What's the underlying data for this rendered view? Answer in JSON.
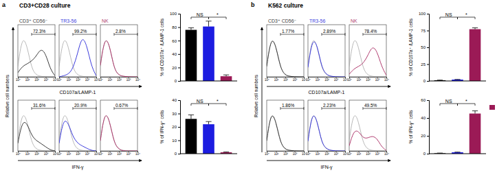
{
  "figure": {
    "panels": [
      {
        "label": "a",
        "title": "CD3+CD28 culture",
        "ylabel": "Relative cell numbers",
        "row_labels": [
          "CD107a/LAMP-1",
          "IFN-γ"
        ]
      },
      {
        "label": "b",
        "title": "K562 culture",
        "ylabel": "Relative cell numbers",
        "row_labels": [
          "CD107a/LAMP-1",
          "IFN-γ"
        ]
      }
    ]
  },
  "chart_data": [
    {
      "type": "histogram_overlay",
      "title": "CD3⁺ CD56⁻",
      "log": "x",
      "xlim": [
        1,
        10000
      ],
      "xticks": [
        {
          "value": 1,
          "label": "10⁰"
        },
        {
          "value": 10,
          "label": "10¹"
        },
        {
          "value": 100,
          "label": "10²"
        },
        {
          "value": 1000,
          "label": "10³"
        },
        {
          "value": 10000,
          "label": "10⁴"
        }
      ],
      "ylim": [
        0,
        100
      ],
      "tick_labels": "x",
      "x": [
        1,
        3,
        10,
        30,
        100,
        300,
        1000,
        3000,
        10000
      ],
      "series": [
        {
          "color": "#a6a6a6",
          "values": [
            20,
            80,
            60,
            15,
            3,
            1,
            0,
            0,
            0
          ]
        },
        {
          "color": "#3a3a3a",
          "values": [
            8,
            20,
            25,
            30,
            40,
            55,
            45,
            15,
            2
          ]
        }
      ],
      "gate": [
        30,
        10000
      ],
      "gate_label": "72.3%"
    },
    {
      "type": "histogram_overlay",
      "title": "TR3-56",
      "log": "x",
      "xlim": [
        1,
        10000
      ],
      "xticks": [
        {
          "value": 1,
          "label": "10⁰"
        },
        {
          "value": 10,
          "label": "10¹"
        },
        {
          "value": 100,
          "label": "10²"
        },
        {
          "value": 1000,
          "label": "10³"
        },
        {
          "value": 10000,
          "label": "10⁴"
        }
      ],
      "ylim": [
        0,
        100
      ],
      "tick_labels": "x",
      "x": [
        1,
        3,
        10,
        30,
        100,
        300,
        1000,
        3000,
        10000
      ],
      "series": [
        {
          "color": "#a6a6a6",
          "values": [
            20,
            80,
            60,
            15,
            3,
            1,
            0,
            0,
            0
          ]
        },
        {
          "color": "#3b3bdc",
          "values": [
            0,
            2,
            5,
            15,
            45,
            80,
            60,
            20,
            2
          ]
        }
      ],
      "gate": [
        30,
        10000
      ],
      "gate_label": "99.2%"
    },
    {
      "type": "histogram_overlay",
      "title": "NK",
      "log": "x",
      "xlim": [
        1,
        10000
      ],
      "xticks": [
        {
          "value": 1,
          "label": "10⁰"
        },
        {
          "value": 10,
          "label": "10¹"
        },
        {
          "value": 100,
          "label": "10²"
        },
        {
          "value": 1000,
          "label": "10³"
        },
        {
          "value": 10000,
          "label": "10⁴"
        }
      ],
      "ylim": [
        0,
        100
      ],
      "tick_labels": "x",
      "x": [
        1,
        3,
        10,
        30,
        100,
        300,
        1000,
        3000,
        10000
      ],
      "series": [
        {
          "color": "#a6a6a6",
          "values": [
            20,
            80,
            60,
            15,
            3,
            1,
            0,
            0,
            0
          ]
        },
        {
          "color": "#b03a6e",
          "values": [
            22,
            78,
            62,
            14,
            3,
            1,
            0,
            0,
            0
          ]
        }
      ],
      "gate": [
        30,
        10000
      ],
      "gate_label": "2.8%"
    },
    {
      "type": "histogram_overlay",
      "log": "x",
      "xlim": [
        1,
        10000
      ],
      "xticks": [
        {
          "value": 1,
          "label": "10⁰"
        },
        {
          "value": 10,
          "label": "10¹"
        },
        {
          "value": 100,
          "label": "10²"
        },
        {
          "value": 1000,
          "label": "10³"
        },
        {
          "value": 10000,
          "label": "10⁴"
        }
      ],
      "ylim": [
        0,
        100
      ],
      "tick_labels": "x",
      "x": [
        1,
        3,
        10,
        30,
        100,
        300,
        1000,
        3000,
        10000
      ],
      "series": [
        {
          "color": "#a6a6a6",
          "values": [
            20,
            80,
            60,
            15,
            3,
            1,
            0,
            0,
            0
          ]
        },
        {
          "color": "#3a3a3a",
          "values": [
            15,
            60,
            55,
            30,
            20,
            15,
            8,
            2,
            0
          ]
        }
      ],
      "gate": [
        30,
        10000
      ],
      "gate_label": "31.6%"
    },
    {
      "type": "histogram_overlay",
      "log": "x",
      "xlim": [
        1,
        10000
      ],
      "xticks": [
        {
          "value": 1,
          "label": "10⁰"
        },
        {
          "value": 10,
          "label": "10¹"
        },
        {
          "value": 100,
          "label": "10²"
        },
        {
          "value": 1000,
          "label": "10³"
        },
        {
          "value": 10000,
          "label": "10⁴"
        }
      ],
      "ylim": [
        0,
        100
      ],
      "tick_labels": "x",
      "x": [
        1,
        3,
        10,
        30,
        100,
        300,
        1000,
        3000,
        10000
      ],
      "series": [
        {
          "color": "#a6a6a6",
          "values": [
            20,
            80,
            60,
            15,
            3,
            1,
            0,
            0,
            0
          ]
        },
        {
          "color": "#3b3bdc",
          "values": [
            15,
            65,
            55,
            28,
            15,
            10,
            5,
            1,
            0
          ]
        }
      ],
      "gate": [
        30,
        10000
      ],
      "gate_label": "20.9%"
    },
    {
      "type": "histogram_overlay",
      "log": "x",
      "xlim": [
        1,
        10000
      ],
      "xticks": [
        {
          "value": 1,
          "label": "10⁰"
        },
        {
          "value": 10,
          "label": "10¹"
        },
        {
          "value": 100,
          "label": "10²"
        },
        {
          "value": 1000,
          "label": "10³"
        },
        {
          "value": 10000,
          "label": "10⁴"
        }
      ],
      "ylim": [
        0,
        100
      ],
      "tick_labels": "x",
      "x": [
        1,
        3,
        10,
        30,
        100,
        300,
        1000,
        3000,
        10000
      ],
      "series": [
        {
          "color": "#a6a6a6",
          "values": [
            20,
            80,
            60,
            15,
            3,
            1,
            0,
            0,
            0
          ]
        },
        {
          "color": "#b03a6e",
          "values": [
            20,
            80,
            60,
            15,
            3,
            0,
            0,
            0,
            0
          ]
        }
      ],
      "gate": [
        30,
        10000
      ],
      "gate_label": "0.67%"
    },
    {
      "type": "bar",
      "ylabel": "% of CD107a⁺ /LAMP-1 cells",
      "categories": [
        null,
        null,
        null
      ],
      "values": [
        76,
        81,
        7
      ],
      "errors": [
        3,
        8,
        2
      ],
      "colors": [
        "#000000",
        "#1c1ce0",
        "#9b1a56"
      ],
      "ylim": [
        0,
        100
      ],
      "yticks": [
        0,
        20,
        40,
        60,
        80,
        100
      ],
      "brackets": [
        {
          "text": "NS",
          "between": [
            0,
            1
          ]
        },
        {
          "text": "*",
          "between": [
            1,
            2
          ]
        }
      ]
    },
    {
      "type": "bar",
      "ylabel": "% of IFN-γ⁺ cells",
      "categories": [
        null,
        null,
        null
      ],
      "values": [
        26,
        22,
        1
      ],
      "errors": [
        3,
        2,
        0.3
      ],
      "colors": [
        "#000000",
        "#1c1ce0",
        "#9b1a56"
      ],
      "ylim": [
        0,
        40
      ],
      "yticks": [
        0,
        10,
        20,
        30,
        40
      ],
      "brackets": [
        {
          "text": "NS",
          "between": [
            0,
            1
          ]
        },
        {
          "text": "*",
          "between": [
            1,
            2
          ]
        }
      ]
    },
    {
      "type": "histogram_overlay",
      "title": "CD3⁺ CD56⁻",
      "log": "x",
      "xlim": [
        1,
        10000
      ],
      "xticks": [
        {
          "value": 1,
          "label": "10⁰"
        },
        {
          "value": 10,
          "label": "10¹"
        },
        {
          "value": 100,
          "label": "10²"
        },
        {
          "value": 1000,
          "label": "10³"
        },
        {
          "value": 10000,
          "label": "10⁴"
        }
      ],
      "ylim": [
        0,
        100
      ],
      "tick_labels": "x",
      "x": [
        1,
        3,
        10,
        30,
        100,
        300,
        1000,
        3000,
        10000
      ],
      "series": [
        {
          "color": "#a6a6a6",
          "values": [
            20,
            80,
            60,
            15,
            3,
            1,
            0,
            0,
            0
          ]
        },
        {
          "color": "#3a3a3a",
          "values": [
            20,
            78,
            60,
            16,
            3,
            1,
            0,
            0,
            0
          ]
        }
      ],
      "gate": [
        30,
        10000
      ],
      "gate_label": "1.77%"
    },
    {
      "type": "histogram_overlay",
      "title": "TR3-56",
      "log": "x",
      "xlim": [
        1,
        10000
      ],
      "xticks": [
        {
          "value": 1,
          "label": "10⁰"
        },
        {
          "value": 10,
          "label": "10¹"
        },
        {
          "value": 100,
          "label": "10²"
        },
        {
          "value": 1000,
          "label": "10³"
        },
        {
          "value": 10000,
          "label": "10⁴"
        }
      ],
      "ylim": [
        0,
        100
      ],
      "tick_labels": "x",
      "x": [
        1,
        3,
        10,
        30,
        100,
        300,
        1000,
        3000,
        10000
      ],
      "series": [
        {
          "color": "#a6a6a6",
          "values": [
            20,
            80,
            60,
            15,
            3,
            1,
            0,
            0,
            0
          ]
        },
        {
          "color": "#3b3bdc",
          "values": [
            18,
            75,
            62,
            17,
            4,
            1,
            0,
            0,
            0
          ]
        }
      ],
      "gate": [
        30,
        10000
      ],
      "gate_label": "2.89%"
    },
    {
      "type": "histogram_overlay",
      "title": "NK",
      "log": "x",
      "xlim": [
        1,
        10000
      ],
      "xticks": [
        {
          "value": 1,
          "label": "10⁰"
        },
        {
          "value": 10,
          "label": "10¹"
        },
        {
          "value": 100,
          "label": "10²"
        },
        {
          "value": 1000,
          "label": "10³"
        },
        {
          "value": 10000,
          "label": "10⁴"
        }
      ],
      "ylim": [
        0,
        100
      ],
      "tick_labels": "x",
      "x": [
        1,
        3,
        10,
        30,
        100,
        300,
        1000,
        3000,
        10000
      ],
      "series": [
        {
          "color": "#a6a6a6",
          "values": [
            20,
            80,
            60,
            15,
            3,
            1,
            0,
            0,
            0
          ]
        },
        {
          "color": "#b03a6e",
          "values": [
            5,
            15,
            20,
            25,
            40,
            60,
            50,
            20,
            3
          ]
        }
      ],
      "gate": [
        30,
        10000
      ],
      "gate_label": "78.4%"
    },
    {
      "type": "histogram_overlay",
      "log": "x",
      "xlim": [
        1,
        10000
      ],
      "xticks": [
        {
          "value": 1,
          "label": "10⁰"
        },
        {
          "value": 10,
          "label": "10¹"
        },
        {
          "value": 100,
          "label": "10²"
        },
        {
          "value": 1000,
          "label": "10³"
        },
        {
          "value": 10000,
          "label": "10⁴"
        }
      ],
      "ylim": [
        0,
        100
      ],
      "tick_labels": "x",
      "x": [
        1,
        3,
        10,
        30,
        100,
        300,
        1000,
        3000,
        10000
      ],
      "series": [
        {
          "color": "#a6a6a6",
          "values": [
            20,
            80,
            60,
            15,
            3,
            1,
            0,
            0,
            0
          ]
        },
        {
          "color": "#3a3a3a",
          "values": [
            20,
            80,
            58,
            15,
            3,
            1,
            0,
            0,
            0
          ]
        }
      ],
      "gate": [
        30,
        10000
      ],
      "gate_label": "1.86%"
    },
    {
      "type": "histogram_overlay",
      "log": "x",
      "xlim": [
        1,
        10000
      ],
      "xticks": [
        {
          "value": 1,
          "label": "10⁰"
        },
        {
          "value": 10,
          "label": "10¹"
        },
        {
          "value": 100,
          "label": "10²"
        },
        {
          "value": 1000,
          "label": "10³"
        },
        {
          "value": 10000,
          "label": "10⁴"
        }
      ],
      "ylim": [
        0,
        100
      ],
      "tick_labels": "x",
      "x": [
        1,
        3,
        10,
        30,
        100,
        300,
        1000,
        3000,
        10000
      ],
      "series": [
        {
          "color": "#a6a6a6",
          "values": [
            20,
            80,
            60,
            15,
            3,
            1,
            0,
            0,
            0
          ]
        },
        {
          "color": "#3b3bdc",
          "values": [
            19,
            79,
            60,
            15,
            4,
            1,
            0,
            0,
            0
          ]
        }
      ],
      "gate": [
        30,
        10000
      ],
      "gate_label": "2.23%"
    },
    {
      "type": "histogram_overlay",
      "log": "x",
      "xlim": [
        1,
        10000
      ],
      "xticks": [
        {
          "value": 1,
          "label": "10⁰"
        },
        {
          "value": 10,
          "label": "10¹"
        },
        {
          "value": 100,
          "label": "10²"
        },
        {
          "value": 1000,
          "label": "10³"
        },
        {
          "value": 10000,
          "label": "10⁴"
        }
      ],
      "ylim": [
        0,
        100
      ],
      "tick_labels": "x",
      "x": [
        1,
        3,
        10,
        30,
        100,
        300,
        1000,
        3000,
        10000
      ],
      "series": [
        {
          "color": "#a6a6a6",
          "values": [
            20,
            80,
            60,
            15,
            3,
            1,
            0,
            0,
            0
          ]
        },
        {
          "color": "#b03a6e",
          "values": [
            10,
            40,
            40,
            25,
            25,
            30,
            25,
            8,
            1
          ]
        }
      ],
      "gate": [
        30,
        10000
      ],
      "gate_label": "49.5%"
    },
    {
      "type": "bar",
      "ylabel": "% of CD107a⁺ /LAMP-1 cells",
      "categories": [
        null,
        null,
        null
      ],
      "values": [
        1,
        2,
        77
      ],
      "errors": [
        0.3,
        0.3,
        2
      ],
      "colors": [
        "#000000",
        "#1c1ce0",
        "#9b1a56"
      ],
      "ylim": [
        0,
        100
      ],
      "yticks": [
        0,
        25,
        50,
        75,
        100
      ],
      "brackets": [
        {
          "text": "NS",
          "between": [
            0,
            1
          ]
        },
        {
          "text": "*",
          "between": [
            1,
            2
          ]
        }
      ]
    },
    {
      "type": "bar",
      "ylabel": "% of IFN-γ⁺ cells",
      "categories": [
        null,
        null,
        null
      ],
      "values": [
        0.5,
        1.5,
        45
      ],
      "errors": [
        0.2,
        0.3,
        3
      ],
      "colors": [
        "#000000",
        "#1c1ce0",
        "#9b1a56"
      ],
      "ylim": [
        0,
        60
      ],
      "yticks": [
        0,
        20,
        40,
        60
      ],
      "brackets": [
        {
          "text": "NS",
          "between": [
            0,
            1
          ]
        },
        {
          "text": "*",
          "between": [
            1,
            2
          ]
        }
      ]
    }
  ]
}
